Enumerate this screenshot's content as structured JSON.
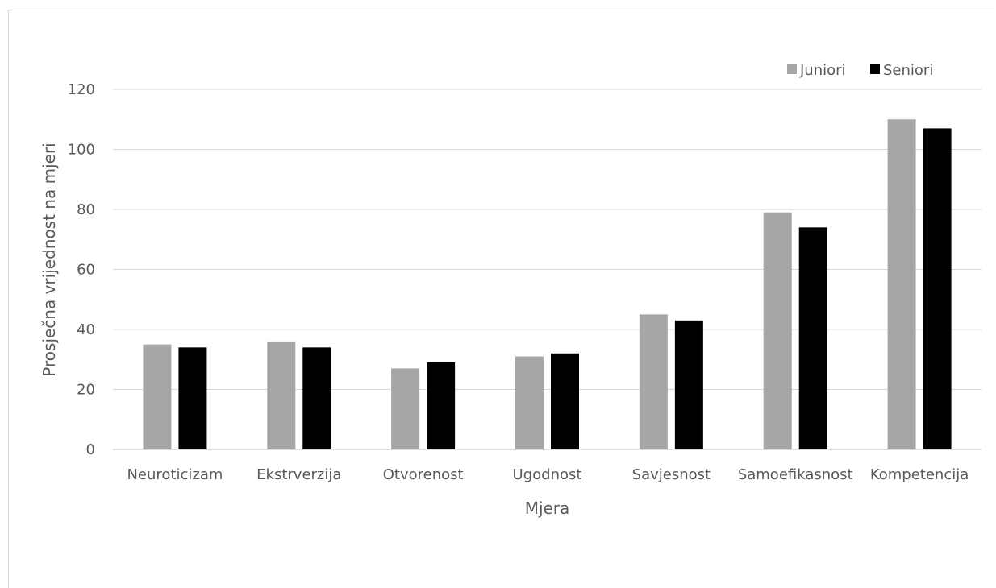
{
  "chart_data": {
    "type": "bar",
    "title": "",
    "xlabel": "Mjera",
    "ylabel": "Prosječna vrijednost na mjeri",
    "categories": [
      "Neuroticizam",
      "Ekstrverzija",
      "Otvorenost",
      "Ugodnost",
      "Savjesnost",
      "Samoefikasnost",
      "Kompetencija"
    ],
    "series": [
      {
        "name": "Juniori",
        "color": "#a6a6a6",
        "values": [
          35,
          36,
          27,
          31,
          45,
          79,
          110
        ]
      },
      {
        "name": "Seniori",
        "color": "#000000",
        "values": [
          34,
          34,
          29,
          32,
          43,
          74,
          107
        ]
      }
    ],
    "ylim": [
      0,
      120
    ],
    "yticks": [
      0,
      20,
      40,
      60,
      80,
      100,
      120
    ],
    "grid": true,
    "legend_position": "top-right"
  }
}
